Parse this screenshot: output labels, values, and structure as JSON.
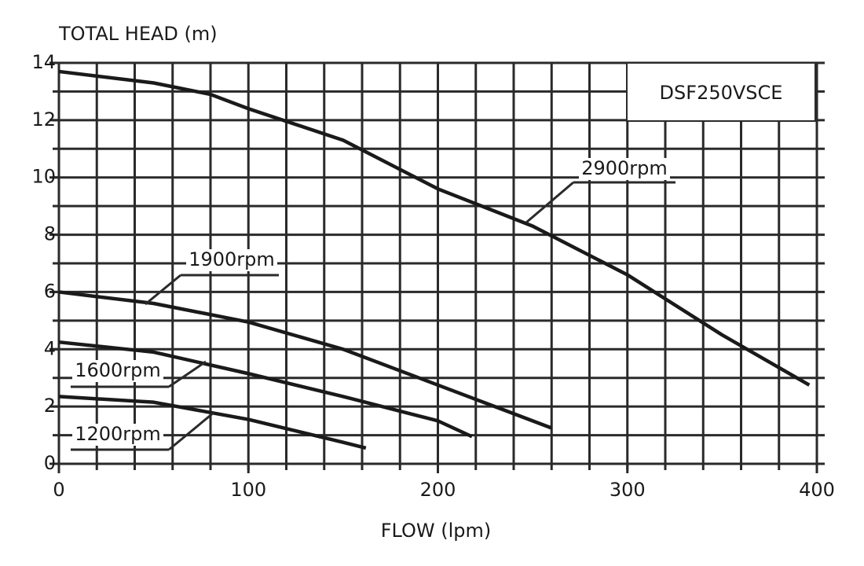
{
  "chart_data": {
    "type": "line",
    "title": "DSF250VSCE",
    "y_label": "TOTAL HEAD (m)",
    "x_label": "FLOW (lpm)",
    "xlim": [
      0,
      400
    ],
    "ylim": [
      0,
      14
    ],
    "xticks": [
      0,
      100,
      200,
      300,
      400
    ],
    "yticks": [
      0,
      2,
      4,
      6,
      8,
      10,
      12,
      14
    ],
    "grid": true,
    "xgrid": [
      0,
      20,
      40,
      60,
      80,
      100,
      120,
      140,
      160,
      180,
      200,
      220,
      240,
      260,
      280,
      300,
      320,
      340,
      360,
      380,
      400
    ],
    "ygrid": [
      0,
      1,
      2,
      3,
      4,
      5,
      6,
      7,
      8,
      9,
      10,
      11,
      12,
      13,
      14
    ],
    "series": [
      {
        "name": "2900rpm",
        "color": "#1a1a1a",
        "x": [
          0,
          50,
          80,
          100,
          150,
          200,
          250,
          300,
          350,
          396
        ],
        "values": [
          13.7,
          13.3,
          12.9,
          12.4,
          11.3,
          9.6,
          8.3,
          6.6,
          4.5,
          2.75
        ]
      },
      {
        "name": "1900rpm",
        "color": "#1a1a1a",
        "x": [
          0,
          50,
          100,
          150,
          200,
          260
        ],
        "values": [
          6.0,
          5.6,
          4.95,
          4.0,
          2.75,
          1.25
        ]
      },
      {
        "name": "1600rpm",
        "color": "#1a1a1a",
        "x": [
          0,
          50,
          100,
          150,
          200,
          218
        ],
        "values": [
          4.25,
          3.9,
          3.15,
          2.35,
          1.5,
          0.95
        ]
      },
      {
        "name": "1200rpm",
        "color": "#1a1a1a",
        "x": [
          0,
          50,
          100,
          150,
          162
        ],
        "values": [
          2.35,
          2.15,
          1.55,
          0.75,
          0.55
        ]
      }
    ]
  }
}
